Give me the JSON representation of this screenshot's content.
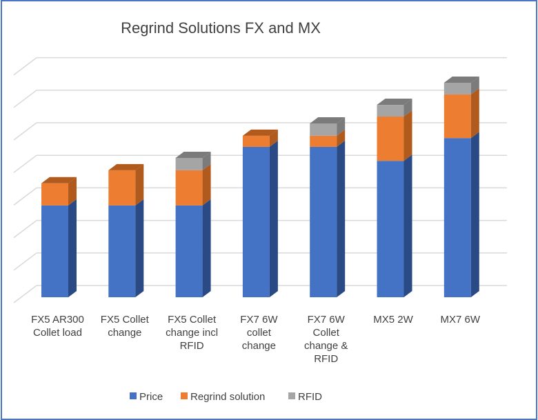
{
  "chart_data": {
    "type": "bar",
    "stacked": true,
    "style": "3d-column",
    "title": "Regrind Solutions FX and MX",
    "xlabel": "",
    "ylabel": "",
    "y_tick_labels_shown": false,
    "grid": true,
    "ylim": [
      0,
      7
    ],
    "legend_position": "bottom",
    "categories": [
      "FX5 AR300 Collet load",
      "FX5 Collet change",
      "FX5 Collet change incl RFID",
      "FX7 6W collet change",
      "FX7 6W Collet change & RFID",
      "MX5 2W",
      "MX7 6W"
    ],
    "series": [
      {
        "name": "Price",
        "color": "#4472c4",
        "side_color": "#2a4a85",
        "values": [
          2.82,
          2.82,
          2.82,
          4.62,
          4.62,
          4.19,
          4.89
        ]
      },
      {
        "name": "Regrind solution",
        "color": "#ed7d31",
        "side_color": "#b05a1e",
        "values": [
          0.68,
          1.08,
          1.08,
          0.34,
          0.34,
          1.36,
          1.34
        ]
      },
      {
        "name": "RFID",
        "color": "#a5a5a5",
        "side_color": "#7b7b7b",
        "values": [
          0,
          0,
          0.38,
          0,
          0.38,
          0.36,
          0.36
        ]
      }
    ]
  }
}
